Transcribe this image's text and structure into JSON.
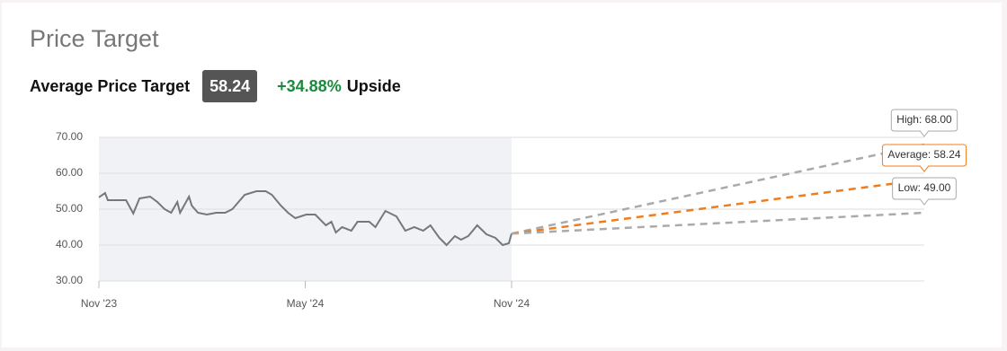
{
  "header": {
    "title": "Price Target",
    "average_label": "Average Price Target",
    "average_value": "58.24",
    "upside_value": "+34.88%",
    "upside_label": "Upside"
  },
  "chart_data": {
    "type": "line",
    "xlim": [
      0,
      24
    ],
    "ylim": [
      30,
      70
    ],
    "xticks": [
      {
        "value": 0,
        "label": "Nov '23"
      },
      {
        "value": 6,
        "label": "May '24"
      },
      {
        "value": 12,
        "label": "Nov '24"
      }
    ],
    "yticks": [
      {
        "value": 30,
        "label": "30.00"
      },
      {
        "value": 40,
        "label": "40.00"
      },
      {
        "value": 50,
        "label": "50.00"
      },
      {
        "value": 60,
        "label": "60.00"
      },
      {
        "value": 70,
        "label": "70.00"
      }
    ],
    "grid": true,
    "history_shade": {
      "x": [
        0,
        12
      ],
      "color": "#f1f2f6"
    },
    "series": [
      {
        "color": "#777777",
        "dashed": false,
        "x": [
          0,
          0.18,
          0.26,
          0.79,
          1.0,
          1.18,
          1.49,
          1.7,
          1.91,
          2.1,
          2.28,
          2.36,
          2.62,
          2.7,
          2.88,
          3.14,
          3.41,
          3.67,
          3.88,
          4.06,
          4.24,
          4.58,
          4.85,
          5.03,
          5.29,
          5.5,
          5.71,
          6.03,
          6.29,
          6.6,
          6.76,
          6.89,
          7.07,
          7.34,
          7.52,
          7.86,
          8.04,
          8.33,
          8.65,
          8.91,
          9.17,
          9.43,
          9.64,
          9.9,
          10.11,
          10.35,
          10.53,
          10.74,
          11.0,
          11.27,
          11.53,
          11.74,
          11.92,
          12
        ],
        "values": [
          53.3,
          54.5,
          52.5,
          52.5,
          48.8,
          53,
          53.5,
          52,
          50,
          49,
          52,
          49,
          53.5,
          51,
          49,
          48.5,
          49,
          49,
          50,
          52,
          54,
          55,
          55,
          54,
          51,
          49,
          47.5,
          48.5,
          48.5,
          45.5,
          46.5,
          43.5,
          45,
          44,
          46.5,
          46.5,
          45,
          49.5,
          48,
          44,
          45,
          44,
          45.5,
          42,
          40,
          42.5,
          41.5,
          42.5,
          45.5,
          43,
          42,
          40,
          40.5,
          43.18
        ]
      },
      {
        "color": "#aaaaaa",
        "dashed": true,
        "x": [
          12,
          24
        ],
        "values": [
          43.18,
          68
        ],
        "value_labels": [
          null,
          "High: 68.00"
        ]
      },
      {
        "color": "#f07c1c",
        "dashed": true,
        "x": [
          12,
          24
        ],
        "values": [
          43.18,
          58.24
        ],
        "value_labels": [
          null,
          "Average: 58.24"
        ]
      },
      {
        "color": "#aaaaaa",
        "dashed": true,
        "x": [
          12,
          24
        ],
        "values": [
          43.18,
          49
        ],
        "value_labels": [
          null,
          "Low: 49.00"
        ]
      }
    ]
  }
}
